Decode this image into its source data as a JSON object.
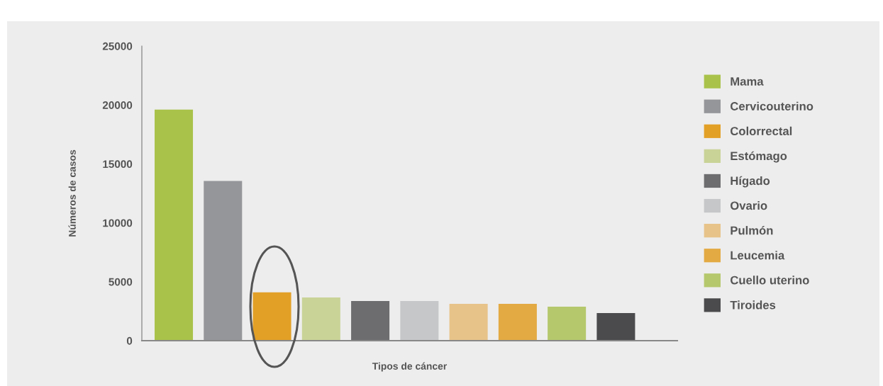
{
  "chart_data": {
    "type": "bar",
    "xlabel": "Tipos de cáncer",
    "ylabel": "Números de casos",
    "categories": [
      null,
      null,
      null,
      null,
      null,
      null,
      null,
      null,
      null,
      null
    ],
    "series": [
      {
        "name": "Mama",
        "color": "#a9c34a",
        "values": [
          19600,
          null,
          null,
          null,
          null,
          null,
          null,
          null,
          null,
          null
        ]
      },
      {
        "name": "Cervicouterino",
        "color": "#959699",
        "values": [
          null,
          13550,
          null,
          null,
          null,
          null,
          null,
          null,
          null,
          null
        ]
      },
      {
        "name": "Colorrectal",
        "color": "#e3a027",
        "values": [
          null,
          null,
          4100,
          null,
          null,
          null,
          null,
          null,
          null,
          null
        ]
      },
      {
        "name": "Estómago",
        "color": "#c9d398",
        "values": [
          null,
          null,
          null,
          3670,
          null,
          null,
          null,
          null,
          null,
          null
        ]
      },
      {
        "name": "Hígado",
        "color": "#6d6d6f",
        "values": [
          null,
          null,
          null,
          null,
          3370,
          null,
          null,
          null,
          null,
          null
        ]
      },
      {
        "name": "Ovario",
        "color": "#c6c7c9",
        "values": [
          null,
          null,
          null,
          null,
          null,
          3370,
          null,
          null,
          null,
          null
        ]
      },
      {
        "name": "Pulmón",
        "color": "#e7c389",
        "values": [
          null,
          null,
          null,
          null,
          null,
          null,
          3130,
          null,
          null,
          null
        ]
      },
      {
        "name": "Leucemia",
        "color": "#e3aa44",
        "values": [
          null,
          null,
          null,
          null,
          null,
          null,
          null,
          3130,
          null,
          null
        ]
      },
      {
        "name": "Cuello uterino",
        "color": "#b5c86c",
        "values": [
          null,
          null,
          null,
          null,
          null,
          null,
          null,
          null,
          2890,
          null
        ]
      },
      {
        "name": "Tiroides",
        "color": "#4b4b4d",
        "values": [
          null,
          null,
          null,
          null,
          null,
          null,
          null,
          null,
          null,
          2350
        ]
      }
    ],
    "ylim": [
      0,
      25000
    ],
    "yticks": [
      0,
      5000,
      10000,
      15000,
      20000,
      25000
    ],
    "stacked": true,
    "tick_labels": "y",
    "grid": false,
    "legend": "right"
  }
}
